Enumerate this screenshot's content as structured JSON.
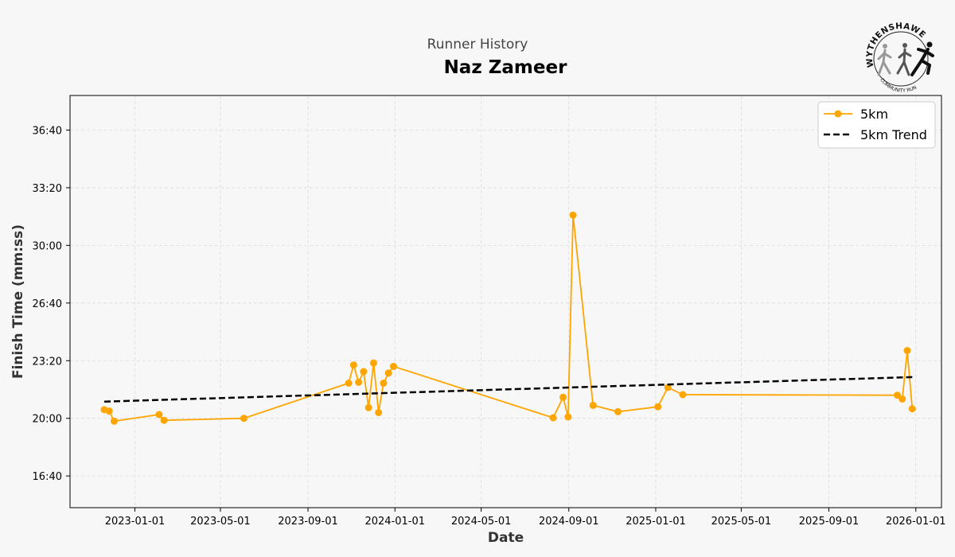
{
  "header": {
    "subtitle": "Runner History",
    "title": "Naz Zameer"
  },
  "logo": {
    "top_text": "WYTHENSHAWE",
    "bottom_text": "COMMUNITY RUN"
  },
  "chart_data": {
    "type": "line",
    "xlabel": "Date",
    "ylabel": "Finish Time (mm:ss)",
    "x_ticks": [
      "2023-01-01",
      "2023-05-01",
      "2023-09-01",
      "2024-01-01",
      "2024-05-01",
      "2024-09-01",
      "2025-01-01",
      "2025-05-01",
      "2025-09-01",
      "2026-01-01"
    ],
    "y_ticks": [
      "16:40",
      "20:00",
      "23:20",
      "26:40",
      "30:00",
      "33:20",
      "36:40"
    ],
    "xlim": [
      "2022-10-02",
      "2026-02-06"
    ],
    "ylim_seconds": [
      890,
      2320
    ],
    "grid": true,
    "legend_position": "top-right",
    "series": [
      {
        "name": "5km",
        "color": "#ffa500",
        "style": "line-marker",
        "points": [
          {
            "date": "2022-11-19",
            "time": "20:30"
          },
          {
            "date": "2022-11-26",
            "time": "20:25"
          },
          {
            "date": "2022-12-03",
            "time": "19:50"
          },
          {
            "date": "2023-02-04",
            "time": "20:13"
          },
          {
            "date": "2023-02-11",
            "time": "19:53"
          },
          {
            "date": "2023-06-03",
            "time": "20:00"
          },
          {
            "date": "2023-10-28",
            "time": "22:02"
          },
          {
            "date": "2023-11-04",
            "time": "23:05"
          },
          {
            "date": "2023-11-11",
            "time": "22:05"
          },
          {
            "date": "2023-11-18",
            "time": "22:42"
          },
          {
            "date": "2023-11-25",
            "time": "20:37"
          },
          {
            "date": "2023-12-02",
            "time": "23:12"
          },
          {
            "date": "2023-12-09",
            "time": "20:20"
          },
          {
            "date": "2023-12-16",
            "time": "22:02"
          },
          {
            "date": "2023-12-23",
            "time": "22:37"
          },
          {
            "date": "2023-12-30",
            "time": "23:00"
          },
          {
            "date": "2024-08-10",
            "time": "20:02"
          },
          {
            "date": "2024-08-24",
            "time": "21:13"
          },
          {
            "date": "2024-08-31",
            "time": "20:05"
          },
          {
            "date": "2024-09-07",
            "time": "31:45"
          },
          {
            "date": "2024-10-05",
            "time": "20:45"
          },
          {
            "date": "2024-11-09",
            "time": "20:23"
          },
          {
            "date": "2025-01-04",
            "time": "20:40"
          },
          {
            "date": "2025-01-18",
            "time": "21:47"
          },
          {
            "date": "2025-02-08",
            "time": "21:22"
          },
          {
            "date": "2025-12-06",
            "time": "21:20"
          },
          {
            "date": "2025-12-13",
            "time": "21:07"
          },
          {
            "date": "2025-12-20",
            "time": "23:55"
          },
          {
            "date": "2025-12-27",
            "time": "20:33"
          }
        ]
      },
      {
        "name": "5km Trend",
        "color": "#000000",
        "style": "dashed",
        "points": [
          {
            "date": "2022-11-19",
            "time": "20:58"
          },
          {
            "date": "2025-12-27",
            "time": "22:23"
          }
        ]
      }
    ]
  }
}
